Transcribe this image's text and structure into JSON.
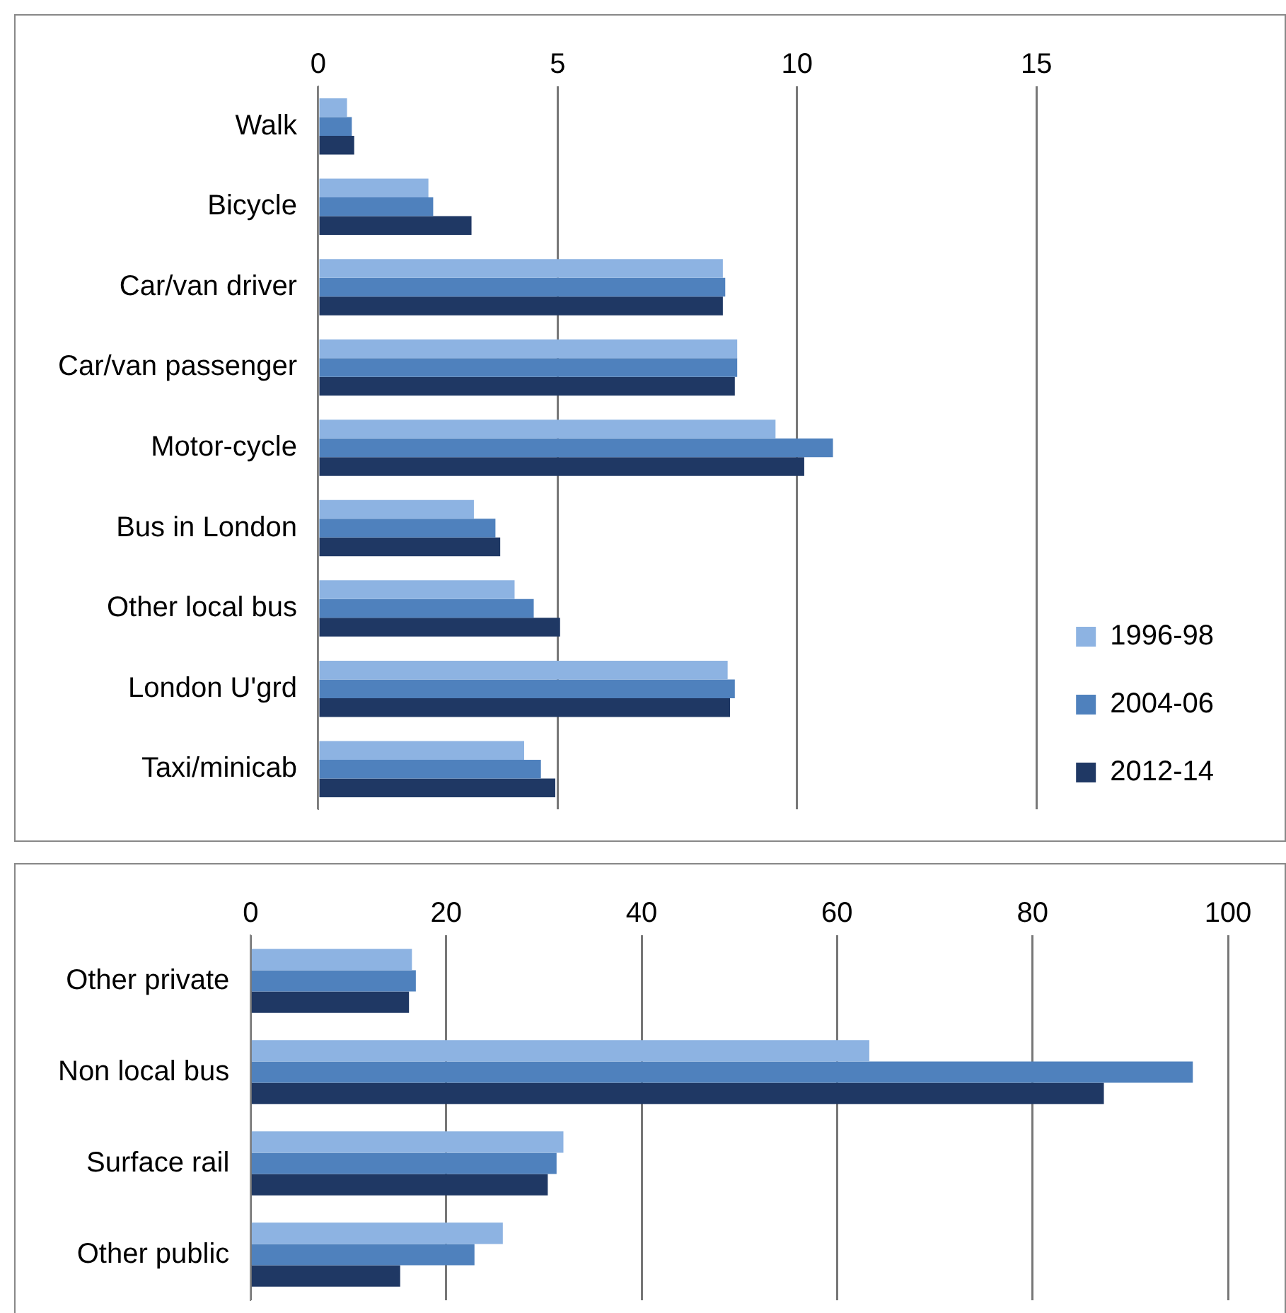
{
  "chart_data": [
    {
      "type": "bar",
      "orientation": "horizontal",
      "categories": [
        "Walk",
        "Bicycle",
        "Car/van driver",
        "Car/van passenger",
        "Motor-cycle",
        "Bus in London",
        "Other local bus",
        "London U'grd",
        "Taxi/minicab"
      ],
      "series": [
        {
          "name": "1996-98",
          "color": "#8db3e2",
          "values": [
            0.6,
            2.3,
            8.45,
            8.75,
            9.55,
            3.25,
            4.1,
            8.55,
            4.3
          ]
        },
        {
          "name": "2004-06",
          "color": "#4f81bd",
          "values": [
            0.7,
            2.4,
            8.5,
            8.75,
            10.75,
            3.7,
            4.5,
            8.7,
            4.65
          ]
        },
        {
          "name": "2012-14",
          "color": "#1f3864",
          "values": [
            0.75,
            3.2,
            8.45,
            8.7,
            10.15,
            3.8,
            5.05,
            8.6,
            4.95
          ]
        }
      ],
      "xlim": [
        0,
        15
      ],
      "xticks": [
        0,
        5,
        10,
        15
      ],
      "grid": "x",
      "legend": "right"
    },
    {
      "type": "bar",
      "orientation": "horizontal",
      "categories": [
        "Other private",
        "Non local bus",
        "Surface rail",
        "Other public"
      ],
      "series": [
        {
          "color": "#8db3e2",
          "values": [
            16.5,
            63.3,
            32,
            25.8
          ]
        },
        {
          "color": "#4f81bd",
          "values": [
            16.9,
            96.4,
            31.3,
            22.9
          ]
        },
        {
          "color": "#1f3864",
          "values": [
            16.2,
            87.3,
            30.4,
            15.3
          ]
        }
      ],
      "xlim": [
        0,
        100
      ],
      "xticks": [
        0,
        20,
        40,
        60,
        80,
        100
      ],
      "grid": "x"
    }
  ]
}
